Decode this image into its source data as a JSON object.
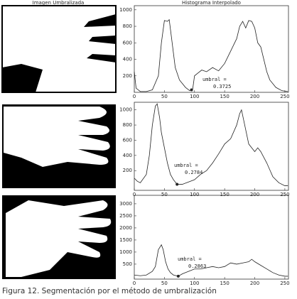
{
  "image_title": "Imagen Umbralizada",
  "caption": "Figura 12. Segmentación por el método de umbralización",
  "chart_data": [
    {
      "type": "line",
      "title": "Histograma Interpolado",
      "x": [
        0,
        3,
        10,
        20,
        30,
        40,
        45,
        50,
        55,
        58,
        62,
        68,
        75,
        85,
        92,
        97,
        100,
        105,
        112,
        120,
        130,
        140,
        150,
        160,
        170,
        175,
        180,
        185,
        190,
        195,
        200,
        205,
        210,
        215,
        220,
        225,
        235,
        245,
        255
      ],
      "series": [
        {
          "color": "#222222",
          "values": [
            250,
            50,
            10,
            10,
            30,
            200,
            600,
            870,
            860,
            880,
            650,
            300,
            150,
            60,
            20,
            40,
            200,
            230,
            270,
            250,
            300,
            260,
            350,
            500,
            650,
            800,
            860,
            780,
            870,
            860,
            780,
            600,
            550,
            400,
            250,
            150,
            60,
            20,
            10
          ]
        }
      ],
      "xlim": [
        0,
        256
      ],
      "xticks": [
        0,
        50,
        100,
        150,
        200,
        250
      ],
      "ylim": [
        0,
        1050
      ],
      "yticks": [
        200,
        400,
        600,
        800,
        1000
      ],
      "annotation": [
        "umbral =",
        "0.3725"
      ],
      "threshold": {
        "x": 95,
        "y": 30
      }
    },
    {
      "type": "line",
      "x": [
        0,
        5,
        10,
        20,
        25,
        30,
        35,
        38,
        42,
        45,
        50,
        55,
        60,
        65,
        71,
        80,
        90,
        100,
        110,
        120,
        130,
        140,
        150,
        160,
        170,
        175,
        178,
        182,
        190,
        200,
        205,
        210,
        220,
        230,
        240,
        250,
        255
      ],
      "series": [
        {
          "color": "#222222",
          "values": [
            100,
            60,
            40,
            150,
            400,
            800,
            1050,
            1080,
            900,
            700,
            500,
            300,
            150,
            80,
            20,
            20,
            50,
            80,
            150,
            200,
            300,
            420,
            550,
            620,
            800,
            950,
            1000,
            850,
            550,
            450,
            500,
            450,
            300,
            120,
            40,
            0,
            0
          ]
        }
      ],
      "xlim": [
        0,
        256
      ],
      "xticks": [
        0,
        50,
        100,
        150,
        200,
        250
      ],
      "ylim": [
        -60,
        1100
      ],
      "yticks": [
        200,
        400,
        600,
        800,
        1000
      ],
      "annotation": [
        "umbral =",
        "0.2784"
      ],
      "threshold": {
        "x": 71,
        "y": 20
      }
    },
    {
      "type": "line",
      "x": [
        0,
        10,
        20,
        30,
        35,
        40,
        45,
        48,
        52,
        56,
        60,
        65,
        73,
        80,
        90,
        100,
        110,
        120,
        130,
        140,
        150,
        160,
        170,
        180,
        190,
        195,
        200,
        210,
        220,
        230,
        240,
        250,
        255
      ],
      "series": [
        {
          "color": "#222222",
          "values": [
            50,
            20,
            50,
            200,
            400,
            1100,
            1300,
            1100,
            600,
            300,
            150,
            50,
            0,
            100,
            200,
            300,
            300,
            350,
            400,
            350,
            400,
            550,
            500,
            550,
            600,
            700,
            600,
            450,
            300,
            150,
            50,
            0,
            0
          ]
        }
      ],
      "xlim": [
        0,
        256
      ],
      "xticks": [
        0,
        50,
        100,
        150,
        200,
        250
      ],
      "ylim": [
        -120,
        3350
      ],
      "yticks": [
        500,
        1000,
        1500,
        2000,
        2500,
        3000
      ],
      "annotation": [
        "umbral =",
        "0.2863"
      ],
      "threshold": {
        "x": 73,
        "y": 0
      }
    }
  ]
}
